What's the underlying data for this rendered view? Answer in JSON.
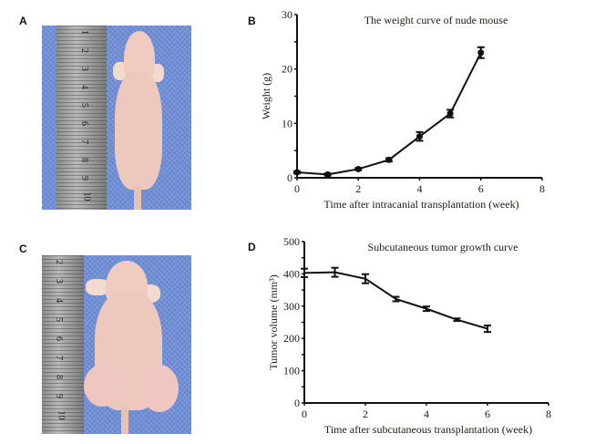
{
  "panels": {
    "a": {
      "letter": "A",
      "description": "Photo of nude mouse next to ruler",
      "ruler_numbers": [
        "1",
        "2",
        "3",
        "4",
        "5",
        "6",
        "7",
        "8",
        "9",
        "10"
      ]
    },
    "b": {
      "letter": "B"
    },
    "c": {
      "letter": "C",
      "description": "Photo of nude mouse with subcutaneous tumors next to ruler",
      "ruler_numbers": [
        "2",
        "3",
        "4",
        "5",
        "6",
        "7",
        "8",
        "9",
        "10"
      ]
    },
    "d": {
      "letter": "D"
    }
  },
  "colors": {
    "line": "#111111",
    "text": "#231a14",
    "fabric": "#6f8fd6"
  },
  "chart_data": [
    {
      "id": "B",
      "type": "line",
      "title": "The weight curve of nude mouse",
      "xlabel": "Time after intracanial transplantation (week)",
      "ylabel": "Weight (g)",
      "x": [
        0,
        1,
        2,
        3,
        4,
        5,
        6
      ],
      "values": [
        1.0,
        0.6,
        1.6,
        3.3,
        7.6,
        11.8,
        23.0
      ],
      "errors": [
        0.2,
        0.2,
        0.2,
        0.3,
        0.8,
        0.7,
        1.0
      ],
      "marker": "circle",
      "xlim": [
        0,
        8
      ],
      "ylim": [
        0,
        30
      ],
      "xticks": [
        "0",
        "2",
        "4",
        "6",
        "8"
      ],
      "yticks": [
        "0",
        "10",
        "20",
        "30"
      ],
      "grid": false
    },
    {
      "id": "D",
      "type": "line",
      "title": "Subcutaneous tumor growth curve",
      "xlabel": "Time after subcutaneous transplantation (week)",
      "ylabel": "Tumor volume (mm³)",
      "x": [
        0,
        1,
        2,
        3,
        4,
        5,
        6
      ],
      "values": [
        403,
        405,
        385,
        322,
        292,
        258,
        230
      ],
      "errors": [
        13,
        14,
        14,
        7,
        7,
        4,
        10
      ],
      "marker": "none",
      "xlim": [
        0,
        8
      ],
      "ylim": [
        0,
        500
      ],
      "xticks": [
        "0",
        "2",
        "4",
        "6",
        "8"
      ],
      "yticks": [
        "0",
        "100",
        "200",
        "300",
        "400",
        "500"
      ],
      "grid": false
    }
  ]
}
